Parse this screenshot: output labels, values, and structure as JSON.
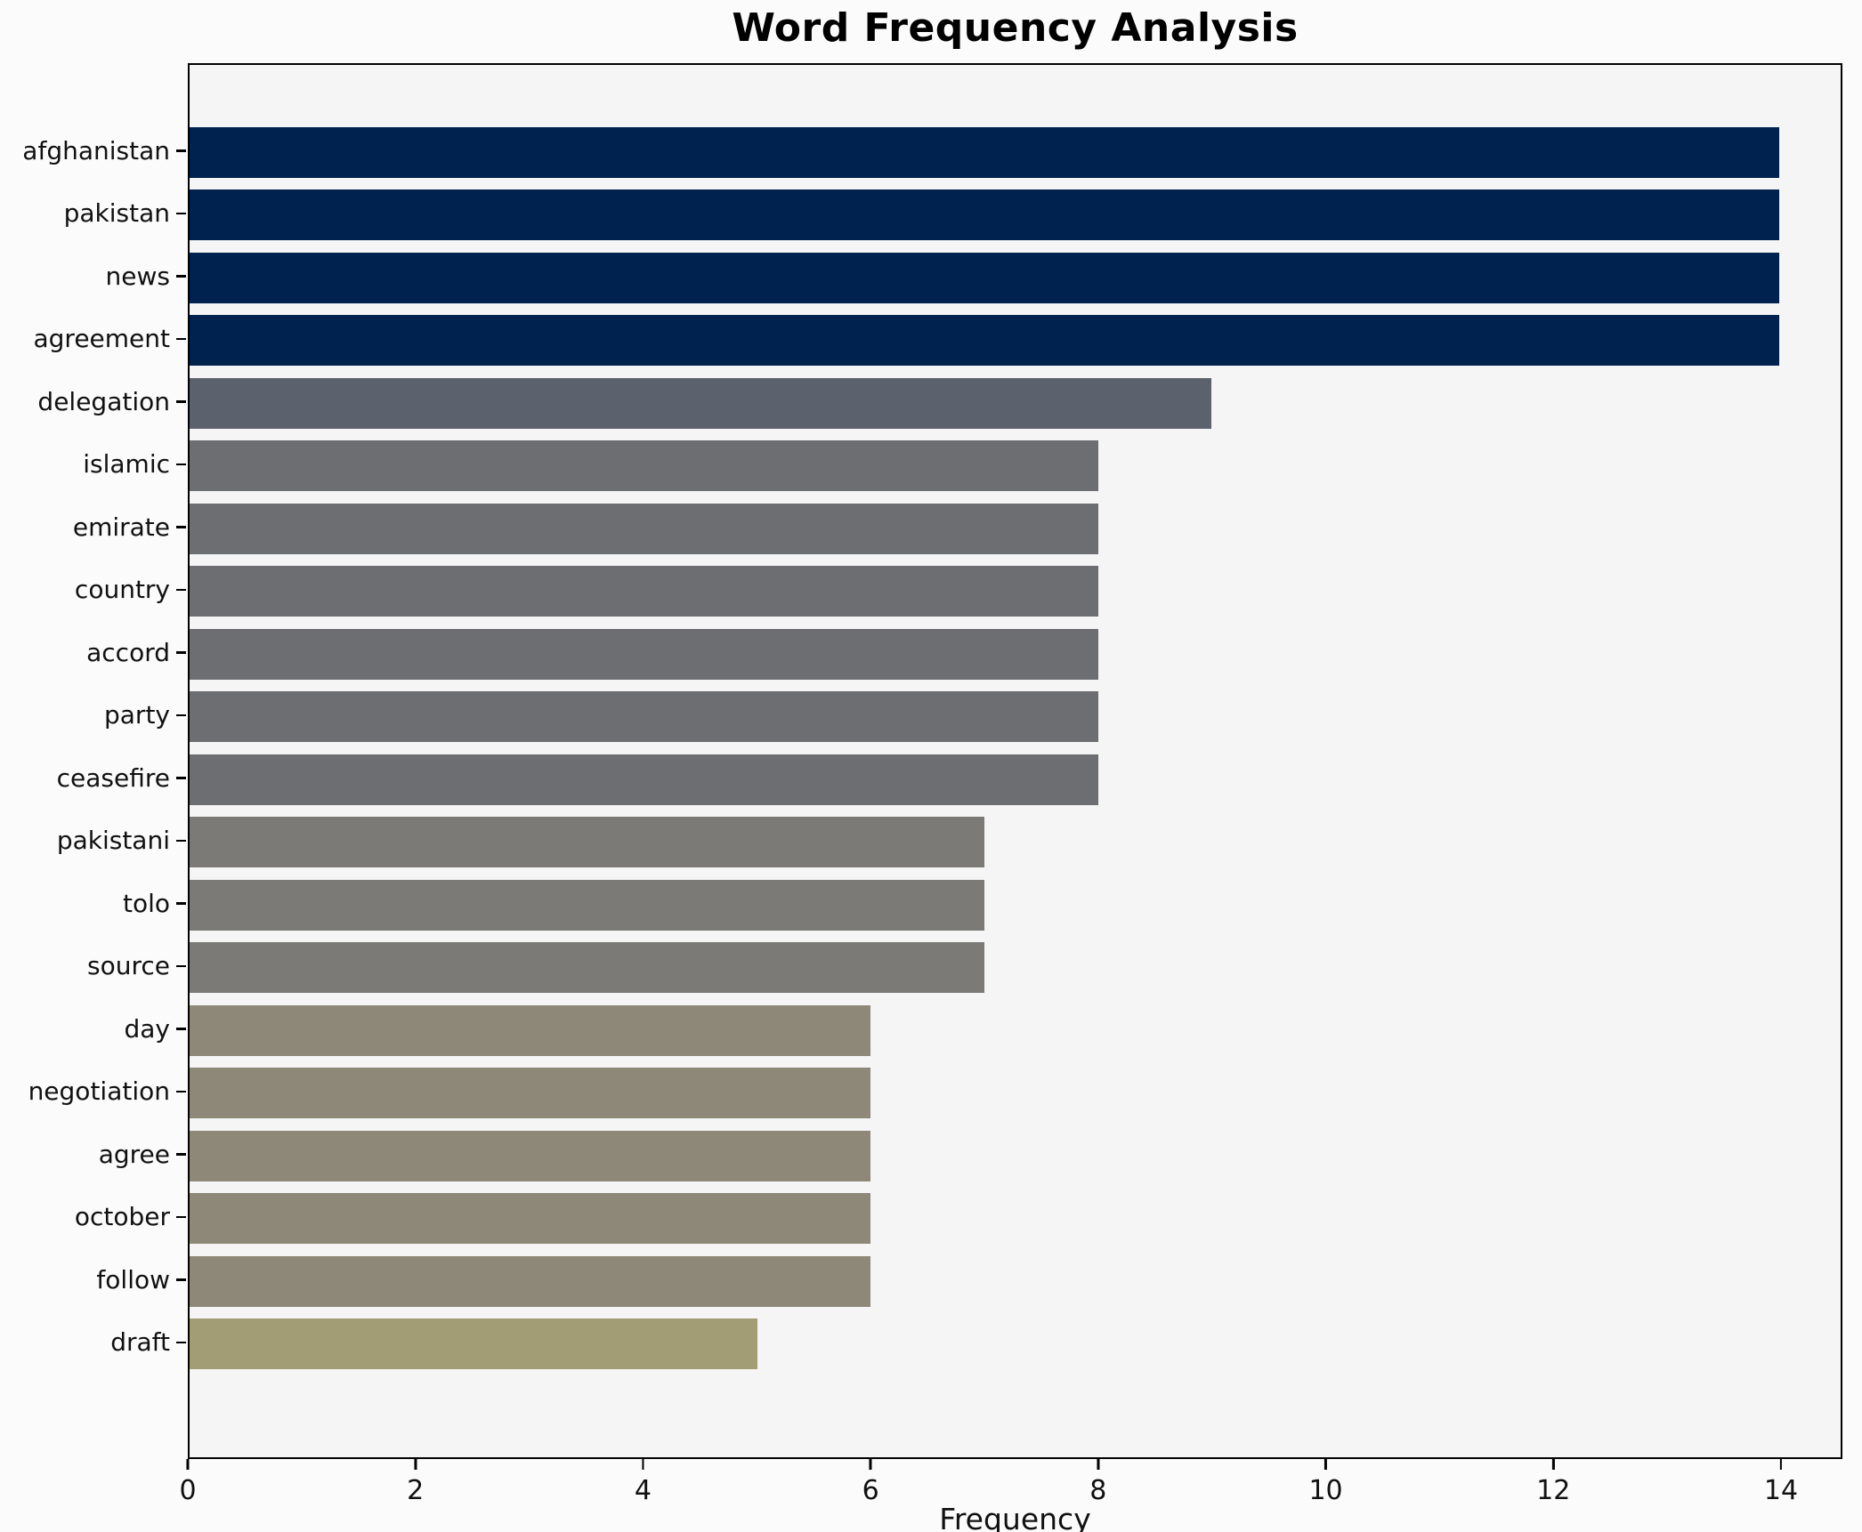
{
  "page": {
    "title": "Word Frequency Analysis"
  },
  "chart_data": {
    "type": "bar",
    "orientation": "horizontal",
    "title": "Word Frequency Analysis",
    "xlabel": "Frequency",
    "ylabel": "",
    "categories": [
      "afghanistan",
      "pakistan",
      "news",
      "agreement",
      "delegation",
      "islamic",
      "emirate",
      "country",
      "accord",
      "party",
      "ceasefire",
      "pakistani",
      "tolo",
      "source",
      "day",
      "negotiation",
      "agree",
      "october",
      "follow",
      "draft"
    ],
    "values": [
      14,
      14,
      14,
      14,
      9,
      8,
      8,
      8,
      8,
      8,
      8,
      7,
      7,
      7,
      6,
      6,
      6,
      6,
      6,
      5
    ],
    "bar_colors": [
      "#00224e",
      "#00224e",
      "#00224e",
      "#00224e",
      "#5c616e",
      "#6d6e71",
      "#6d6e71",
      "#6d6e71",
      "#6d6e71",
      "#6d6e71",
      "#6d6e71",
      "#7b7a76",
      "#7b7a76",
      "#7b7a76",
      "#8e8878",
      "#8e8878",
      "#8e8878",
      "#8e8878",
      "#8e8878",
      "#a39d75"
    ],
    "x_ticks": [
      0,
      2,
      4,
      6,
      8,
      10,
      12,
      14
    ],
    "xlim": [
      0,
      14.54
    ],
    "grid": false,
    "legend": false,
    "colormap": "cividis-reversed",
    "plot_bg": "#f5f5f6",
    "figure_bg": "#fbfbfb",
    "axis_color": "#000000"
  }
}
